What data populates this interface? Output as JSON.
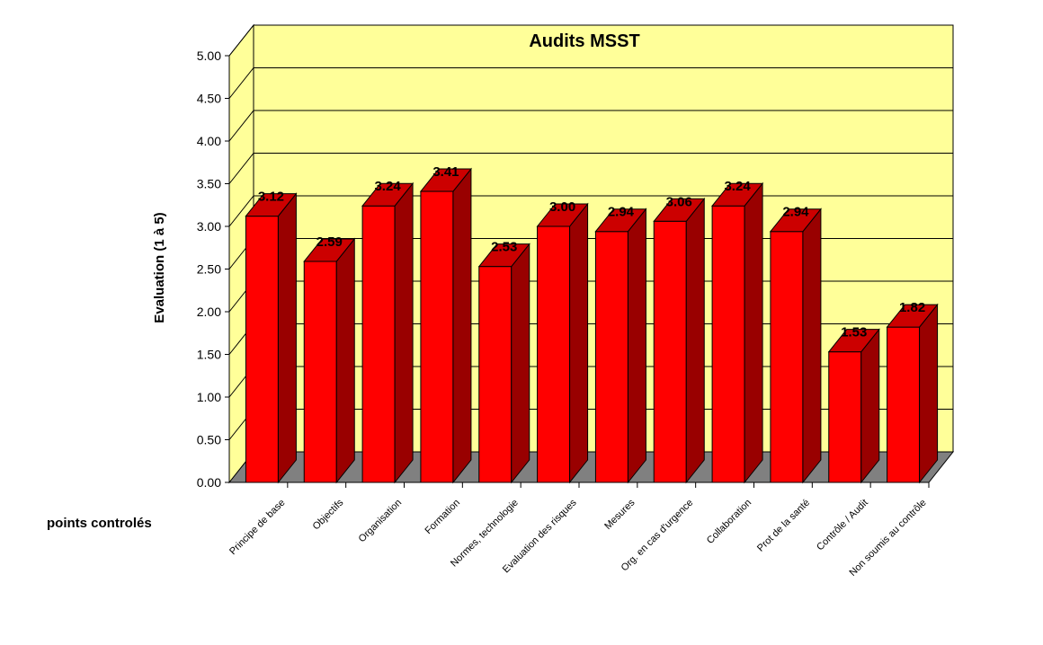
{
  "chart_data": {
    "type": "bar",
    "title": "Audits MSST",
    "ylabel": "Evaluation (1 à 5)",
    "xlabel": "points controlés",
    "ylim": [
      0,
      5
    ],
    "ytick_step": 0.5,
    "grid": true,
    "style": "3d",
    "colors": {
      "bar_front": "#ff0000",
      "bar_side": "#990000",
      "bar_top": "#cc0000",
      "wall": "#ffff99",
      "floor": "#808080"
    },
    "categories": [
      "Principe de base",
      "Objectifs",
      "Organisation",
      "Formation",
      "Normes, technologie",
      "Evaluation des risques",
      "Mesures",
      "Org. en cas d'urgence",
      "Collaboration",
      "Prot de la santé",
      "Contrôle / Audit",
      "Non soumis au contrôle"
    ],
    "values": [
      3.12,
      2.59,
      3.24,
      3.41,
      2.53,
      3.0,
      2.94,
      3.06,
      3.24,
      2.94,
      1.53,
      1.82
    ],
    "value_labels": [
      "3.12",
      "2.59",
      "3.24",
      "3.41",
      "2.53",
      "3.00",
      "2.94",
      "3.06",
      "3.24",
      "2.94",
      "1.53",
      "1.82"
    ]
  }
}
